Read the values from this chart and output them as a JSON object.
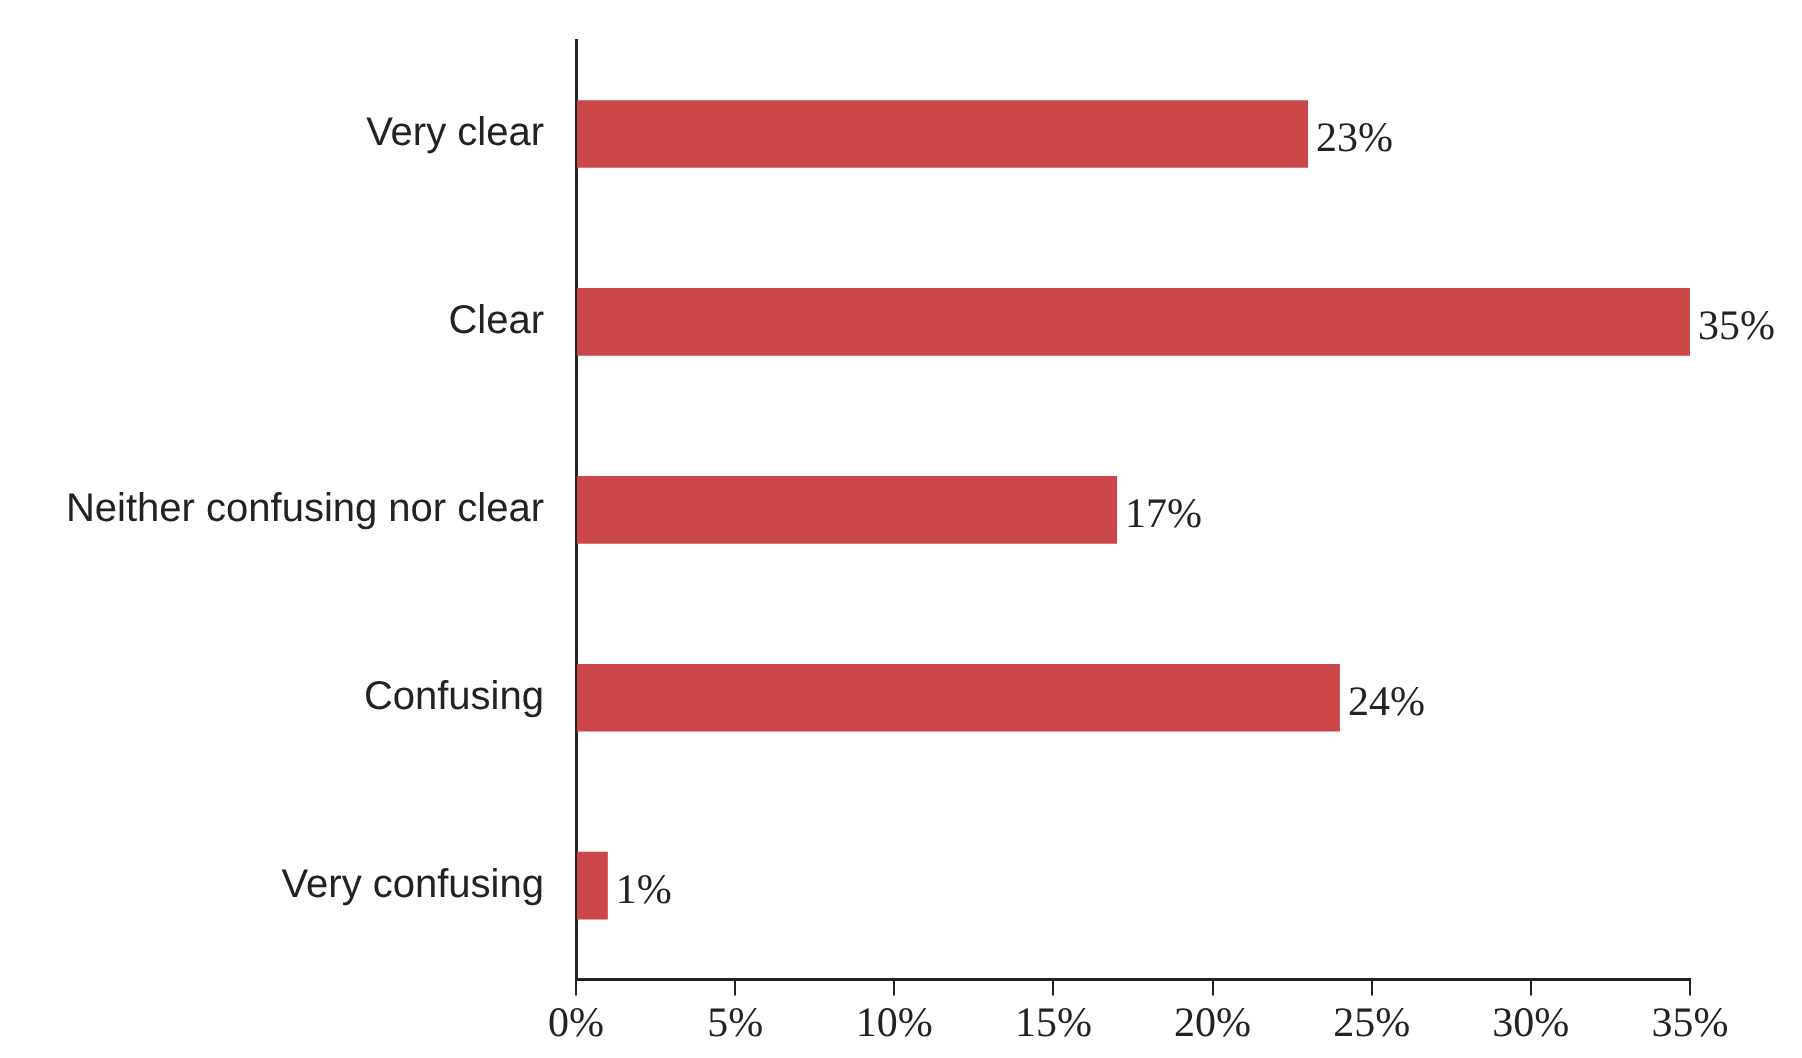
{
  "chart_data": {
    "type": "bar",
    "orientation": "horizontal",
    "categories": [
      "Very clear",
      "Clear",
      "Neither confusing nor clear",
      "Confusing",
      "Very confusing"
    ],
    "values": [
      23,
      35,
      17,
      24,
      1
    ],
    "value_labels": [
      "23%",
      "35%",
      "17%",
      "24%",
      "1%"
    ],
    "color": "#cb474a",
    "xlim": [
      0,
      35
    ],
    "xticks": [
      {
        "value": 0,
        "label": "0%"
      },
      {
        "value": 5,
        "label": "5%"
      },
      {
        "value": 10,
        "label": "10%"
      },
      {
        "value": 15,
        "label": "15%"
      },
      {
        "value": 20,
        "label": "20%"
      },
      {
        "value": 25,
        "label": "25%"
      },
      {
        "value": 30,
        "label": "30%"
      },
      {
        "value": 35,
        "label": "35%"
      }
    ],
    "grid": false,
    "legend": false
  }
}
